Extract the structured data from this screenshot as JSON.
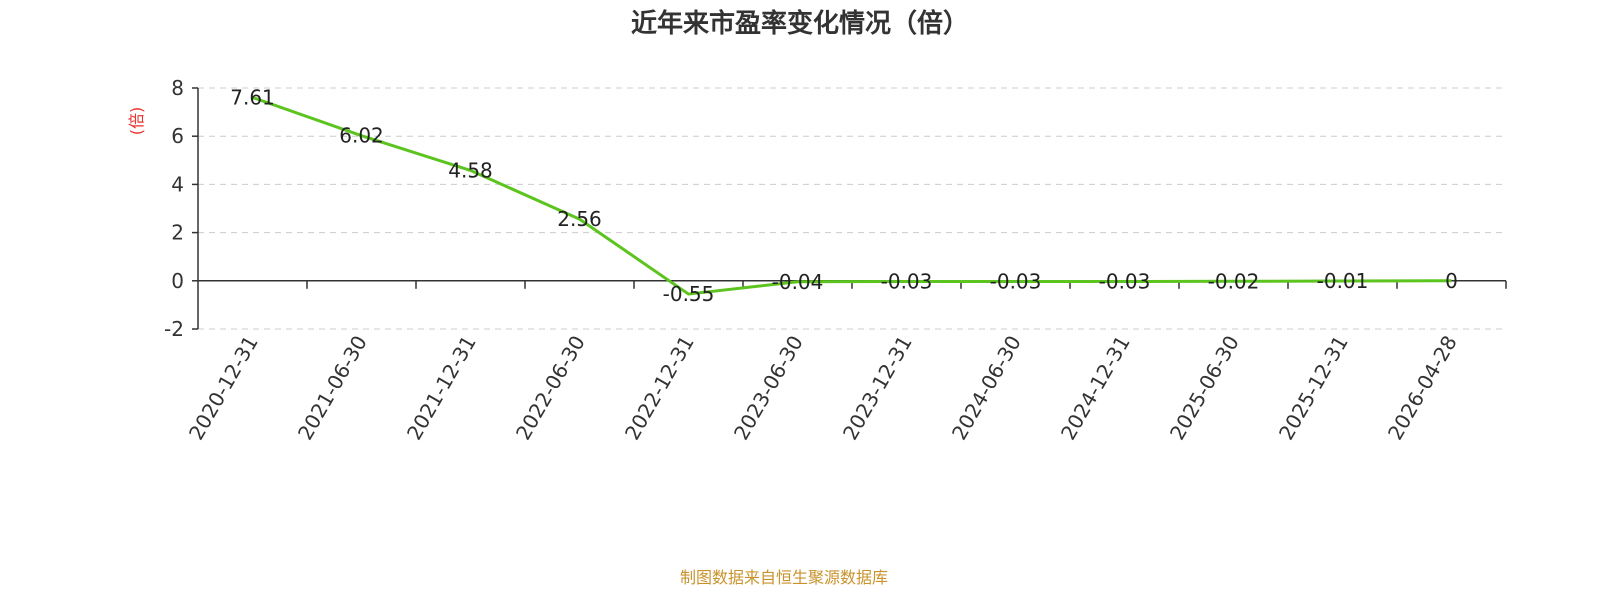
{
  "chart_data": {
    "type": "line",
    "title": "近年来市盈率变化情况（倍）",
    "ylabel": "(倍)",
    "xlabel": "",
    "ylim": [
      -2,
      8
    ],
    "yticks": [
      -2,
      0,
      2,
      4,
      6,
      8
    ],
    "grid": true,
    "categories": [
      "2020-12-31",
      "2021-06-30",
      "2021-12-31",
      "2022-06-30",
      "2022-12-31",
      "2023-06-30",
      "2023-12-31",
      "2024-06-30",
      "2024-12-31",
      "2025-06-30",
      "2025-12-31",
      "2026-04-28"
    ],
    "series": [
      {
        "values": [
          7.61,
          6.02,
          4.58,
          2.56,
          -0.55,
          -0.04,
          -0.03,
          -0.03,
          -0.03,
          -0.02,
          -0.01,
          0
        ]
      }
    ],
    "data_labels": [
      "7.61",
      "6.02",
      "4.58",
      "2.56",
      "-0.55",
      "-0.04",
      "-0.03",
      "-0.03",
      "-0.03",
      "-0.02",
      "-0.01",
      "0"
    ]
  },
  "colors": {
    "line": "#5cc41e",
    "ylabel": "#e8322e",
    "source": "#c8932c",
    "grid": "#cccccc",
    "axis": "#333333"
  },
  "footer": {
    "source": "制图数据来自恒生聚源数据库"
  }
}
